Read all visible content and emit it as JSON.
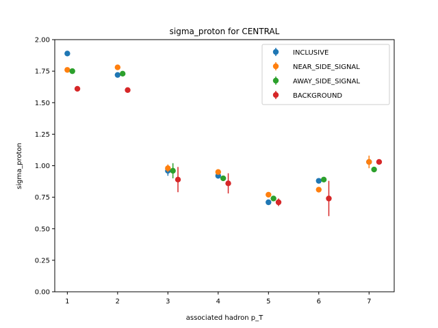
{
  "chart_data": {
    "type": "scatter",
    "title": "sigma_proton for CENTRAL",
    "xlabel": "associated hadron p_T",
    "ylabel": "sigma_proton",
    "xlim": [
      0.75,
      7.5
    ],
    "ylim": [
      0.0,
      2.0
    ],
    "xticks": [
      "1",
      "2",
      "3",
      "4",
      "5",
      "6",
      "7"
    ],
    "yticks": [
      "0.00",
      "0.25",
      "0.50",
      "0.75",
      "1.00",
      "1.25",
      "1.50",
      "1.75",
      "2.00"
    ],
    "legend_position": "top-right",
    "grid": false,
    "series": [
      {
        "name": "INCLUSIVE",
        "color": "#1f77b4",
        "x": [
          1.0,
          2.0,
          3.0,
          4.0,
          5.0,
          6.0,
          7.0
        ],
        "y": [
          1.89,
          1.72,
          0.96,
          0.92,
          0.71,
          0.88,
          1.03
        ],
        "yerr": [
          0.01,
          0.01,
          0.04,
          0.02,
          0.02,
          0.02,
          0.04
        ]
      },
      {
        "name": "NEAR_SIDE_SIGNAL",
        "color": "#ff7f0e",
        "x": [
          1.0,
          2.0,
          3.0,
          4.0,
          5.0,
          6.0,
          7.0
        ],
        "y": [
          1.76,
          1.78,
          0.98,
          0.95,
          0.77,
          0.81,
          1.03
        ],
        "yerr": [
          0.01,
          0.01,
          0.03,
          0.02,
          0.02,
          0.02,
          0.05
        ]
      },
      {
        "name": "AWAY_SIDE_SIGNAL",
        "color": "#2ca02c",
        "x": [
          1.1,
          2.1,
          3.1,
          4.1,
          5.1,
          6.1,
          7.1
        ],
        "y": [
          1.75,
          1.73,
          0.96,
          0.9,
          0.74,
          0.89,
          0.97
        ],
        "yerr": [
          0.01,
          0.01,
          0.06,
          0.02,
          0.02,
          0.02,
          0.02
        ]
      },
      {
        "name": "BACKGROUND",
        "color": "#d62728",
        "x": [
          1.2,
          2.2,
          3.2,
          4.2,
          5.2,
          6.2,
          7.2
        ],
        "y": [
          1.61,
          1.6,
          0.89,
          0.86,
          0.71,
          0.74,
          1.03
        ],
        "yerr": [
          0.01,
          0.01,
          0.1,
          0.08,
          0.03,
          0.14,
          0.02
        ]
      }
    ]
  }
}
